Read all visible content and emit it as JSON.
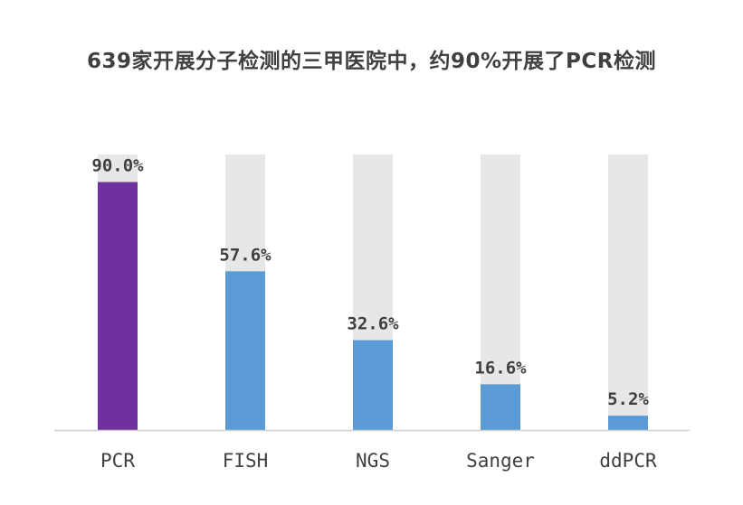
{
  "chart_data": {
    "type": "bar",
    "title": "639家开展分子检测的三甲医院中，约90%开展了PCR检测",
    "categories": [
      "PCR",
      "FISH",
      "NGS",
      "Sanger",
      "ddPCR"
    ],
    "values": [
      90.0,
      57.6,
      32.6,
      16.6,
      5.2
    ],
    "value_labels": [
      "90.0%",
      "57.6%",
      "32.6%",
      "16.6%",
      "5.2%"
    ],
    "unit": "%",
    "ylim": [
      0,
      100
    ],
    "background_bar_value": 100,
    "grid": false,
    "legend": "none",
    "colors": {
      "highlight": "#7030A0",
      "bar": "#5B9BD5",
      "background_bar": "#E7E7E7",
      "axis": "#D0D0D0",
      "text": "#404040"
    },
    "highlight_index": 0
  }
}
